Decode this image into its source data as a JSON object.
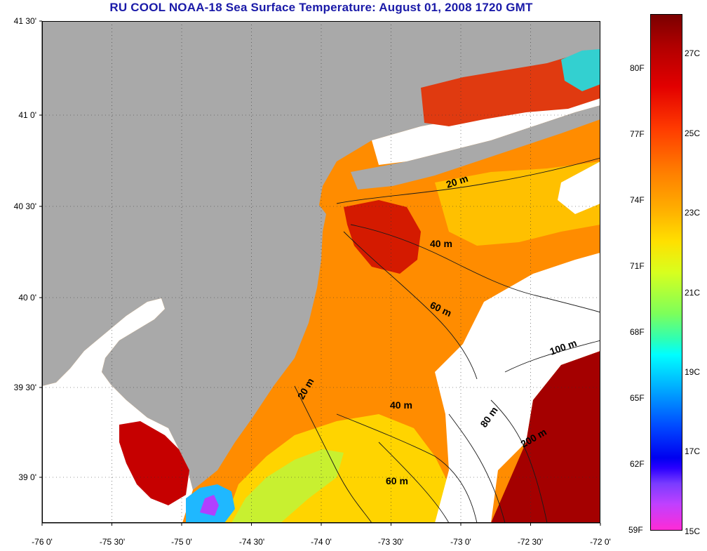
{
  "title": "RU COOL  NOAA-18  Sea Surface Temperature:  August 01, 2008 1720 GMT",
  "axes": {
    "lat_labels": [
      "41 30'",
      "41 0'",
      "40 30'",
      "40 0'",
      "39 30'",
      "39 0'"
    ],
    "lon_labels": [
      "-76 0'",
      "-75 30'",
      "-75 0'",
      "-74 30'",
      "-74 0'",
      "-73 30'",
      "-73 0'",
      "-72 30'",
      "-72 0'"
    ]
  },
  "contours": [
    "20 m",
    "40 m",
    "60 m",
    "100 m",
    "20 m",
    "40 m",
    "60 m",
    "80 m",
    "200 m"
  ],
  "colorbar": {
    "fahrenheit": [
      "80F",
      "77F",
      "74F",
      "71F",
      "68F",
      "65F",
      "62F",
      "59F"
    ],
    "celsius": [
      "27C",
      "25C",
      "23C",
      "21C",
      "19C",
      "17C",
      "15C"
    ]
  },
  "colors": {
    "land": "#a9a9a9",
    "cloud": "#ffffff",
    "title": "#1a1aa8",
    "warm": "#b00000",
    "cool": "#00ffff"
  }
}
